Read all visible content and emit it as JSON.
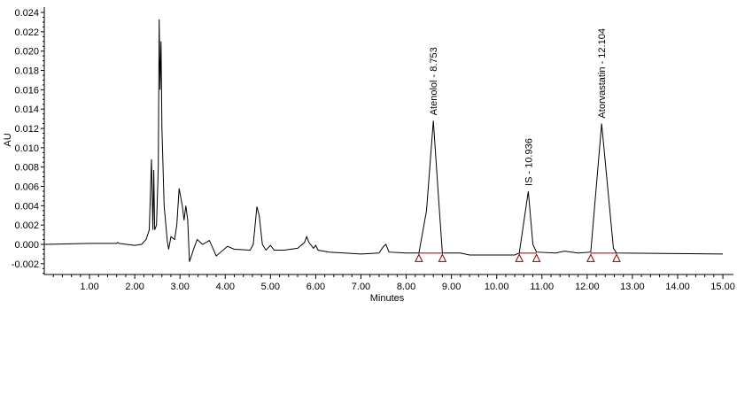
{
  "chart_data": {
    "type": "line",
    "title": "",
    "xlabel": "Minutes",
    "ylabel": "AU",
    "xlim": [
      0,
      15.2
    ],
    "ylim": [
      -0.003,
      0.024
    ],
    "x_ticks": [
      "1.00",
      "2.00",
      "3.00",
      "4.00",
      "5.00",
      "6.00",
      "7.00",
      "8.00",
      "9.00",
      "10.00",
      "11.00",
      "12.00",
      "13.00",
      "14.00",
      "15.00"
    ],
    "y_ticks": [
      "-0.002",
      "0.000",
      "0.002",
      "0.004",
      "0.006",
      "0.008",
      "0.010",
      "0.012",
      "0.014",
      "0.016",
      "0.018",
      "0.020",
      "0.022",
      "0.024"
    ],
    "grid": false,
    "colors": {
      "trace": "#000000",
      "integration": "#8b0000"
    },
    "series": [
      {
        "x": [
          0,
          1.0,
          1.6,
          1.62,
          1.65,
          2.0,
          2.15,
          2.25,
          2.32,
          2.37,
          2.4,
          2.42,
          2.44,
          2.48,
          2.52,
          2.54,
          2.56,
          2.58,
          2.6,
          2.65,
          2.72,
          2.75,
          2.8,
          2.88,
          2.93,
          2.98,
          3.05,
          3.09,
          3.13,
          3.17,
          3.21,
          3.3,
          3.38,
          3.5,
          3.65,
          3.8,
          4.05,
          4.2,
          4.55,
          4.62,
          4.7,
          4.75,
          4.82,
          4.9,
          5.0,
          5.08,
          5.3,
          5.6,
          5.75,
          5.8,
          5.85,
          5.95,
          6.0,
          6.05,
          6.3,
          7.0,
          7.4,
          7.5,
          7.55,
          7.62,
          8.0,
          8.28,
          8.45,
          8.6,
          8.72,
          8.8,
          9.2,
          9.4,
          10.4,
          10.5,
          10.7,
          10.8,
          10.88,
          11.3,
          11.5,
          11.8,
          12.08,
          12.32,
          12.58,
          12.65,
          15.0
        ],
        "y": [
          0,
          0.0001,
          0.0001,
          0.0002,
          0.0001,
          -0.0001,
          0,
          0.0005,
          0.0015,
          0.0088,
          0.0015,
          0.0077,
          0.0015,
          0.002,
          0.008,
          0.0233,
          0.016,
          0.021,
          0.012,
          0.004,
          0.0003,
          -0.0005,
          0.0008,
          0.0005,
          0.002,
          0.0058,
          0.004,
          0.0025,
          0.004,
          0.0025,
          -0.0018,
          -0.0005,
          0.0005,
          0,
          0.0004,
          -0.0012,
          -0.0002,
          -0.0005,
          -0.0006,
          0,
          0.0039,
          0.003,
          0,
          -0.0006,
          -0.0001,
          -0.0006,
          -0.0006,
          -0.0004,
          0.0002,
          0.0008,
          0.0002,
          -0.0004,
          -0.0001,
          -0.0006,
          -0.0008,
          -0.001,
          -0.0009,
          -0.0002,
          0,
          -0.0008,
          -0.0009,
          -0.0009,
          0.0035,
          0.0128,
          0.0045,
          -0.0009,
          -0.0009,
          -0.0011,
          -0.0011,
          -0.0009,
          0.0055,
          0,
          -0.0008,
          -0.0009,
          -0.0007,
          -0.0009,
          -0.0008,
          0.0125,
          -0.0004,
          -0.0009,
          -0.001
        ]
      }
    ],
    "peaks": [
      {
        "label": "Atenolol - 8.753",
        "apex_x": 8.6,
        "apex_y": 0.0128,
        "start": 8.28,
        "end": 8.8
      },
      {
        "label": "IS - 10.936",
        "apex_x": 10.7,
        "apex_y": 0.0055,
        "start": 10.5,
        "end": 10.88
      },
      {
        "label": "Atorvastatin - 12.104",
        "apex_x": 12.32,
        "apex_y": 0.0125,
        "start": 12.08,
        "end": 12.65
      }
    ]
  }
}
